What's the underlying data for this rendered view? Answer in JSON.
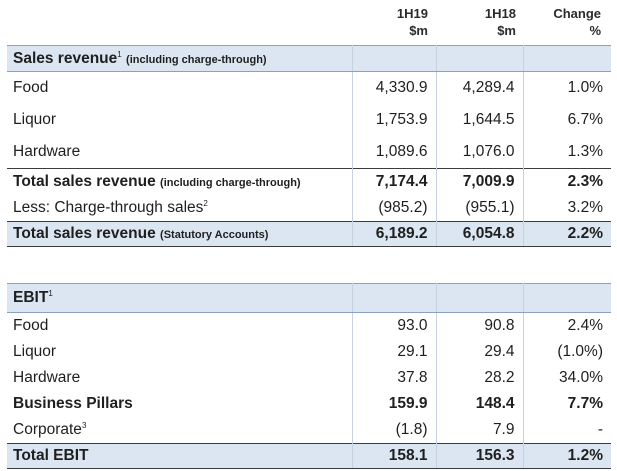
{
  "header": {
    "col1_line1": "1H19",
    "col1_line2": "$m",
    "col2_line1": "1H18",
    "col2_line2": "$m",
    "col3_line1": "Change",
    "col3_line2": "%"
  },
  "sales": {
    "title": "Sales revenue",
    "title_sup": "1",
    "title_note": "(including charge-through)",
    "rows": [
      {
        "label": "Food",
        "v1": "4,330.9",
        "v2": "4,289.4",
        "chg": "1.0%"
      },
      {
        "label": "Liquor",
        "v1": "1,753.9",
        "v2": "1,644.5",
        "chg": "6.7%"
      },
      {
        "label": "Hardware",
        "v1": "1,089.6",
        "v2": "1,076.0",
        "chg": "1.3%"
      }
    ],
    "total": {
      "label": "Total sales revenue",
      "note": "(including charge-through)",
      "v1": "7,174.4",
      "v2": "7,009.9",
      "chg": "2.3%"
    },
    "less": {
      "label": "Less: Charge-through sales",
      "sup": "2",
      "v1": "(985.2)",
      "v2": "(955.1)",
      "chg": "3.2%"
    },
    "statutory": {
      "label": "Total sales revenue",
      "note": "(Statutory Accounts)",
      "v1": "6,189.2",
      "v2": "6,054.8",
      "chg": "2.2%"
    }
  },
  "ebit": {
    "title": "EBIT",
    "title_sup": "1",
    "rows": [
      {
        "label": "Food",
        "v1": "93.0",
        "v2": "90.8",
        "chg": "2.4%",
        "bold": false
      },
      {
        "label": "Liquor",
        "v1": "29.1",
        "v2": "29.4",
        "chg": "(1.0%)",
        "bold": false
      },
      {
        "label": "Hardware",
        "v1": "37.8",
        "v2": "28.2",
        "chg": "34.0%",
        "bold": false
      },
      {
        "label": "Business Pillars",
        "v1": "159.9",
        "v2": "148.4",
        "chg": "7.7%",
        "bold": true
      },
      {
        "label": "Corporate",
        "sup": "3",
        "v1": "(1.8)",
        "v2": "7.9",
        "chg": "-",
        "bold": false
      }
    ],
    "total": {
      "label": "Total EBIT",
      "v1": "158.1",
      "v2": "156.3",
      "chg": "1.2%"
    }
  }
}
